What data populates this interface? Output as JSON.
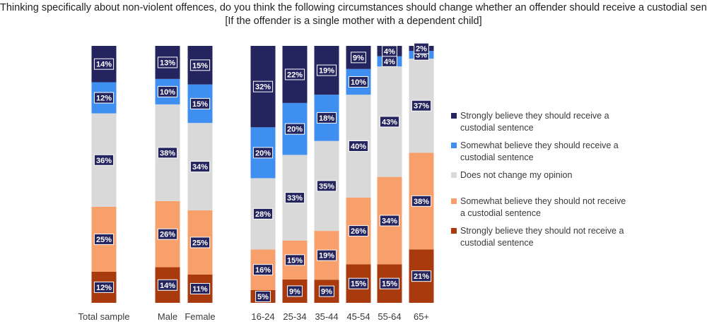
{
  "chart_data": {
    "type": "stacked-bar-100",
    "title": "Thinking specifically about non-violent offences, do you think the following circumstances should change whether an offender should receive a custodial sentence?",
    "subtitle": "[If the offender is a single mother with a dependent child]",
    "categories": [
      "Total sample",
      "Male",
      "Female",
      "16-24",
      "25-34",
      "35-44",
      "45-54",
      "55-64",
      "65+"
    ],
    "series": [
      {
        "name": "Strongly believe they should not receive a custodial sentence",
        "color": "#a93a0e",
        "values": [
          12,
          14,
          11,
          5,
          9,
          9,
          15,
          15,
          21
        ]
      },
      {
        "name": "Somewhat believe they should not receive a custodial sentence",
        "color": "#f8a06c",
        "values": [
          25,
          26,
          25,
          16,
          15,
          19,
          26,
          34,
          38
        ]
      },
      {
        "name": "Does not change my opinion",
        "color": "#d9d9d9",
        "values": [
          36,
          38,
          34,
          28,
          33,
          35,
          40,
          43,
          37
        ]
      },
      {
        "name": "Somewhat believe they should receive a custodial sentence",
        "color": "#3f8ff0",
        "values": [
          12,
          10,
          15,
          20,
          20,
          18,
          10,
          4,
          3
        ]
      },
      {
        "name": "Strongly believe they should receive a custodial sentence",
        "color": "#24245f",
        "values": [
          14,
          13,
          15,
          32,
          22,
          19,
          9,
          4,
          2
        ]
      }
    ],
    "value_suffix": "%",
    "legend": [
      {
        "line1": "Strongly believe they should receive a",
        "line2": "custodial sentence",
        "color": "#24245f"
      },
      {
        "line1": "Somewhat believe they should receive a",
        "line2": "custodial sentence",
        "color": "#3f8ff0"
      },
      {
        "line1": "Does not change my opinion",
        "line2": "",
        "color": "#d9d9d9"
      },
      {
        "line1": "Somewhat believe they should not receive",
        "line2": "a custodial sentence",
        "color": "#f8a06c"
      },
      {
        "line1": "Strongly believe they should not receive a",
        "line2": "custodial sentence",
        "color": "#a93a0e"
      }
    ],
    "legend_position": "right"
  }
}
